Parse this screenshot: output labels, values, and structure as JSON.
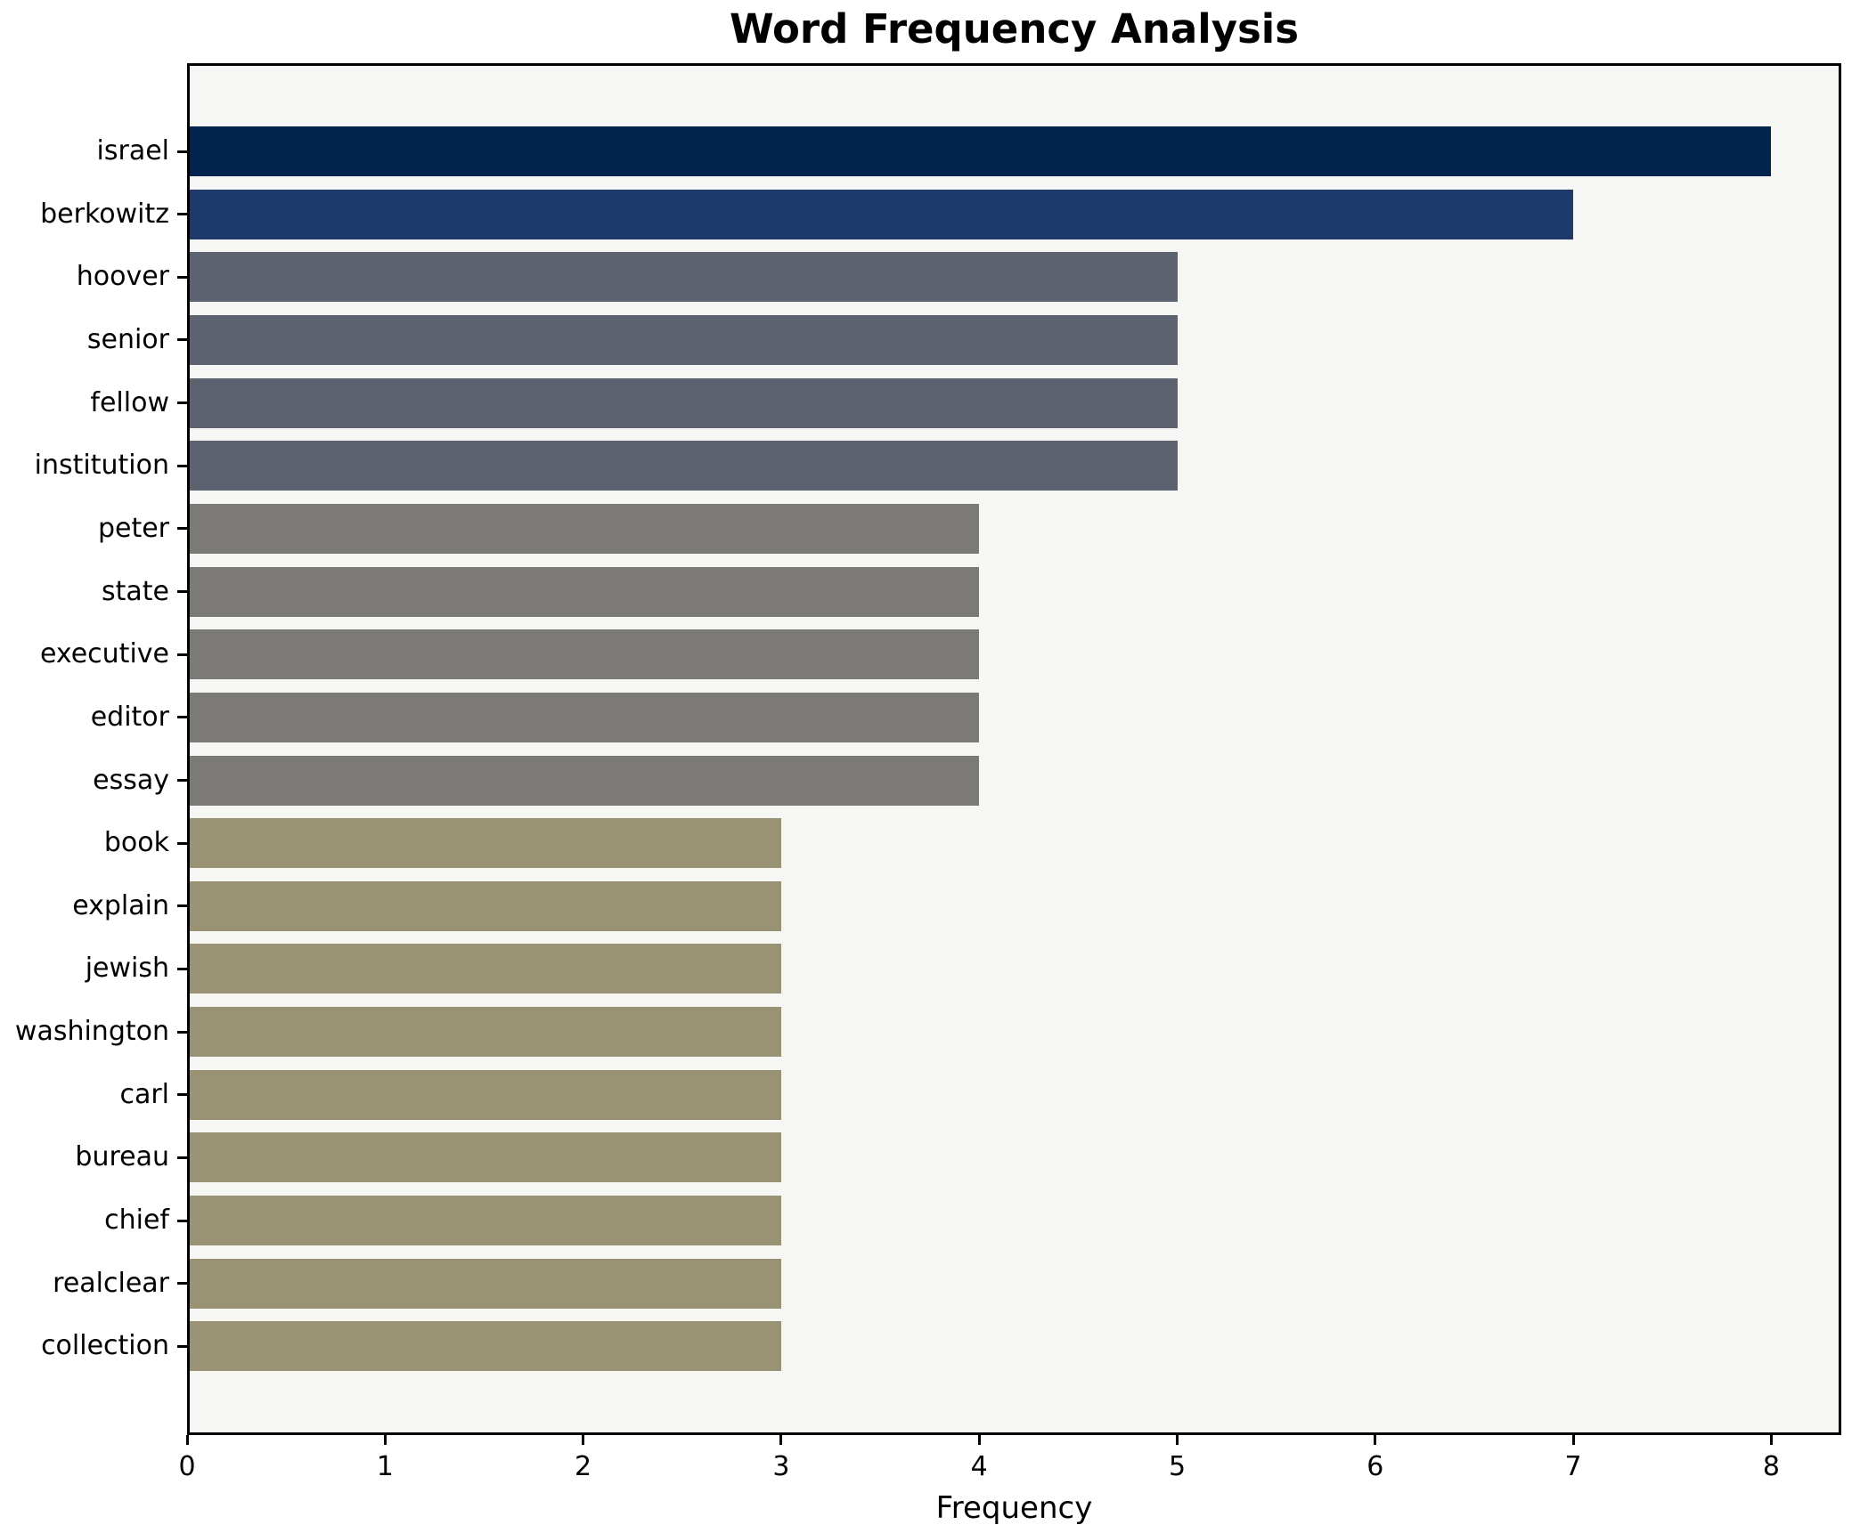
{
  "title": "Word Frequency Analysis",
  "chart_data": {
    "type": "bar",
    "orientation": "horizontal",
    "title": "Word Frequency Analysis",
    "xlabel": "Frequency",
    "ylabel": "",
    "categories": [
      "israel",
      "berkowitz",
      "hoover",
      "senior",
      "fellow",
      "institution",
      "peter",
      "state",
      "executive",
      "editor",
      "essay",
      "book",
      "explain",
      "jewish",
      "washington",
      "carl",
      "bureau",
      "chief",
      "realclear",
      "collection"
    ],
    "values": [
      8,
      7,
      5,
      5,
      5,
      5,
      4,
      4,
      4,
      4,
      4,
      3,
      3,
      3,
      3,
      3,
      3,
      3,
      3,
      3
    ],
    "bar_colors": [
      "#02234d",
      "#1c3a6c",
      "#5d6270",
      "#5d6270",
      "#5d6270",
      "#5d6270",
      "#7c7a76",
      "#7c7a76",
      "#7c7a76",
      "#7c7a76",
      "#7c7a76",
      "#9a9274",
      "#9a9274",
      "#9a9274",
      "#9a9274",
      "#9a9274",
      "#9a9274",
      "#9a9274",
      "#9a9274",
      "#9a9274"
    ],
    "xticks": [
      "0",
      "1",
      "2",
      "3",
      "4",
      "5",
      "6",
      "7",
      "8"
    ],
    "xlim": [
      0,
      8.35
    ],
    "grid": false,
    "legend": null,
    "plot_background": "#f6f6f4",
    "figure_background": "#ffffff",
    "spine_color": "#000000",
    "text_color": "#000000"
  }
}
